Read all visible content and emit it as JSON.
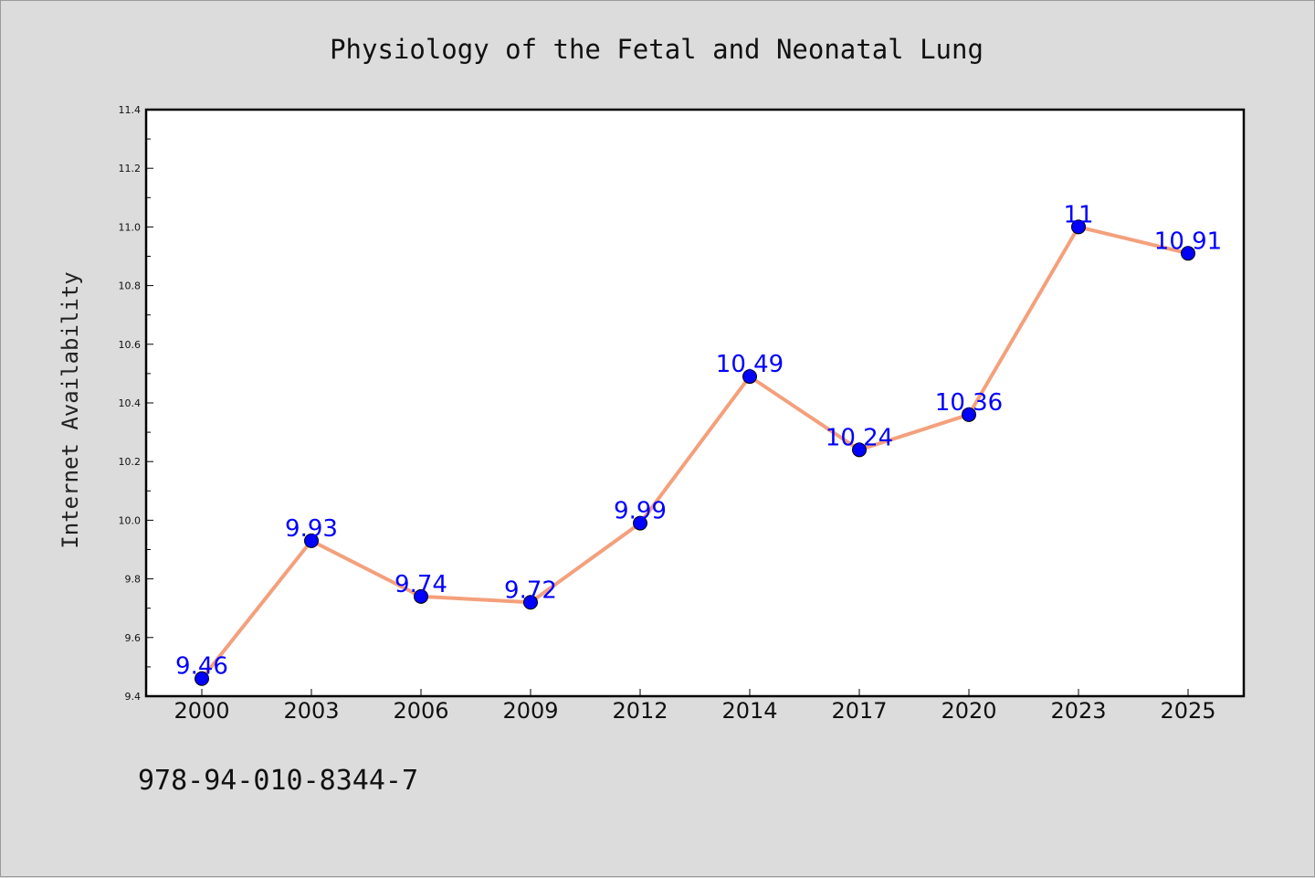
{
  "chart_data": {
    "type": "line",
    "title": "Physiology of the Fetal and Neonatal Lung",
    "xlabel": "",
    "ylabel": "Internet Availability",
    "categories": [
      "2000",
      "2003",
      "2006",
      "2009",
      "2012",
      "2014",
      "2017",
      "2020",
      "2023",
      "2025"
    ],
    "series": [
      {
        "values": [
          9.46,
          9.93,
          9.74,
          9.72,
          9.99,
          10.49,
          10.24,
          10.36,
          11,
          10.91
        ],
        "labels": [
          "9.46",
          "9.93",
          "9.74",
          "9.72",
          "9.99",
          "10.49",
          "10.24",
          "10.36",
          "11",
          "10.91"
        ],
        "line_color": "#f4a07c",
        "marker_color": "#0000ff"
      }
    ],
    "ylim": [
      9.4,
      11.4
    ],
    "yticks": [
      "9.4",
      "9.6",
      "9.8",
      "10.0",
      "10.2",
      "10.4",
      "10.6",
      "10.8",
      "11.0",
      "11.2",
      "11.4"
    ],
    "grid": false,
    "annotation": "978-94-010-8344-7"
  }
}
